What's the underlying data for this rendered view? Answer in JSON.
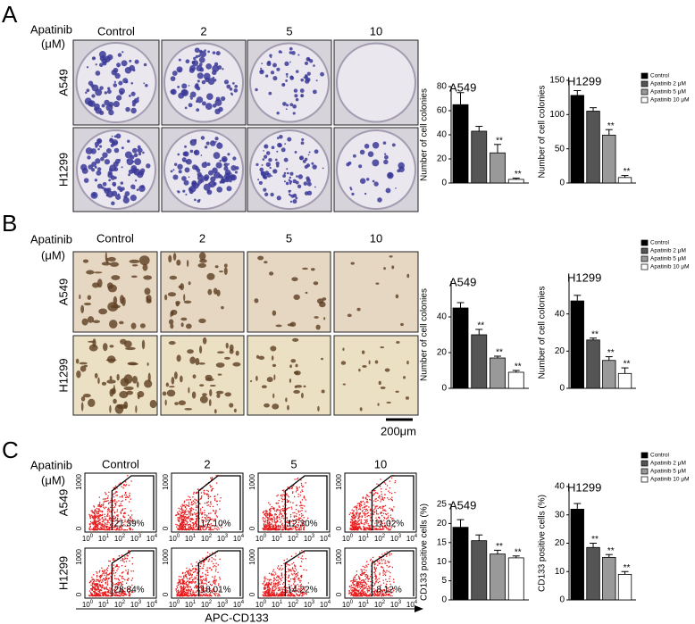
{
  "panels": [
    {
      "letter": "A",
      "treatment": "Apatinib",
      "unit": "(μM)",
      "columns": [
        "Control",
        "2",
        "5",
        "10"
      ],
      "rows": [
        "A549",
        "H1299"
      ]
    },
    {
      "letter": "B",
      "treatment": "Apatinib",
      "unit": "(μM)",
      "columns": [
        "Control",
        "2",
        "5",
        "10"
      ],
      "rows": [
        "A549",
        "H1299"
      ],
      "scale_bar": "200μm"
    },
    {
      "letter": "C",
      "treatment": "Apatinib",
      "unit": "(μM)",
      "columns": [
        "Control",
        "2",
        "5",
        "10"
      ],
      "rows": [
        "A549",
        "H1299"
      ],
      "gates": [
        [
          "21.39%",
          "17.10%",
          "12.30%",
          "11.02%"
        ],
        [
          "28.84%",
          "18.01%",
          "14.22%",
          "8.12%"
        ]
      ],
      "flow_axis": {
        "x_label": "APC-CD133",
        "x_ticks": [
          {
            "base": "10",
            "exp": "0"
          },
          {
            "base": "10",
            "exp": "1"
          },
          {
            "base": "10",
            "exp": "2"
          },
          {
            "base": "10",
            "exp": "3"
          },
          {
            "base": "10",
            "exp": "4"
          }
        ],
        "y_ticks": [
          "0",
          "1000"
        ]
      }
    }
  ],
  "chart_data": [
    {
      "type": "bar",
      "title": "A549",
      "y_label": "Number of cell colonies",
      "ylim": [
        0,
        80
      ],
      "yticks": [
        0,
        20,
        40,
        60,
        80
      ],
      "series": [
        {
          "color": "#000000",
          "values": [
            65
          ],
          "errors": [
            10
          ]
        },
        {
          "color": "#555555",
          "values": [
            43
          ],
          "errors": [
            4
          ]
        },
        {
          "color": "#999999",
          "values": [
            25
          ],
          "errors": [
            7
          ],
          "annotation": "**"
        },
        {
          "color": "#ffffff",
          "values": [
            3
          ],
          "errors": [
            1
          ],
          "annotation": "**"
        }
      ]
    },
    {
      "type": "bar",
      "title": "H1299",
      "y_label": "Number of cell colonies",
      "ylim": [
        0,
        150
      ],
      "yticks": [
        0,
        50,
        100,
        150
      ],
      "legend": "upper right",
      "series": [
        {
          "name": "Control",
          "color": "#000000",
          "values": [
            128
          ],
          "errors": [
            7
          ]
        },
        {
          "name": "Apatinib 2 μM",
          "color": "#555555",
          "values": [
            105
          ],
          "errors": [
            5
          ]
        },
        {
          "name": "Apatinib 5 μM",
          "color": "#999999",
          "values": [
            70
          ],
          "errors": [
            8
          ],
          "annotation": "**"
        },
        {
          "name": "Apatinib 10 μM",
          "color": "#ffffff",
          "values": [
            8
          ],
          "errors": [
            3
          ],
          "annotation": "**"
        }
      ]
    },
    {
      "type": "bar",
      "title": "A549",
      "y_label": "Number of cell colonies",
      "ylim": [
        0,
        60
      ],
      "yticks": [
        0,
        20,
        40
      ],
      "series": [
        {
          "color": "#000000",
          "values": [
            45
          ],
          "errors": [
            3
          ]
        },
        {
          "color": "#555555",
          "values": [
            30
          ],
          "errors": [
            3
          ],
          "annotation": "**"
        },
        {
          "color": "#999999",
          "values": [
            17
          ],
          "errors": [
            1
          ],
          "annotation": "**"
        },
        {
          "color": "#ffffff",
          "values": [
            9
          ],
          "errors": [
            1
          ],
          "annotation": "**"
        }
      ]
    },
    {
      "type": "bar",
      "title": "H1299",
      "y_label": "Number of cell colonies",
      "ylim": [
        0,
        60
      ],
      "yticks": [
        0,
        20,
        40
      ],
      "legend": "upper right",
      "series": [
        {
          "name": "Control",
          "color": "#000000",
          "values": [
            47
          ],
          "errors": [
            3
          ]
        },
        {
          "name": "Apatinib 2 μM",
          "color": "#555555",
          "values": [
            26
          ],
          "errors": [
            1
          ],
          "annotation": "**"
        },
        {
          "name": "Apatinib 5 μM",
          "color": "#999999",
          "values": [
            15
          ],
          "errors": [
            2
          ],
          "annotation": "**"
        },
        {
          "name": "Apatinib 10 μM",
          "color": "#ffffff",
          "values": [
            8
          ],
          "errors": [
            3
          ],
          "annotation": "**"
        }
      ]
    },
    {
      "type": "bar",
      "title": "A549",
      "y_label": "CD133  positive cells (%)",
      "ylim": [
        0,
        25
      ],
      "yticks": [
        0,
        5,
        10,
        15,
        20,
        25
      ],
      "series": [
        {
          "color": "#000000",
          "values": [
            19
          ],
          "errors": [
            2
          ]
        },
        {
          "color": "#555555",
          "values": [
            15.5
          ],
          "errors": [
            1.5
          ]
        },
        {
          "color": "#999999",
          "values": [
            12
          ],
          "errors": [
            1
          ],
          "annotation": "**"
        },
        {
          "color": "#ffffff",
          "values": [
            11
          ],
          "errors": [
            0.5
          ],
          "annotation": "**"
        }
      ]
    },
    {
      "type": "bar",
      "title": "H1299",
      "y_label": "CD133  positive cells (%)",
      "ylim": [
        0,
        40
      ],
      "yticks": [
        0,
        10,
        20,
        30,
        40
      ],
      "legend": "upper right",
      "series": [
        {
          "name": "Control",
          "color": "#000000",
          "values": [
            32
          ],
          "errors": [
            2
          ]
        },
        {
          "name": "Apatinib 2 μM",
          "color": "#555555",
          "values": [
            18.5
          ],
          "errors": [
            1.5
          ],
          "annotation": "**"
        },
        {
          "name": "Apatinib 5 μM",
          "color": "#999999",
          "values": [
            15
          ],
          "errors": [
            1
          ],
          "annotation": "**"
        },
        {
          "name": "Apatinib 10 μM",
          "color": "#ffffff",
          "values": [
            9
          ],
          "errors": [
            1
          ],
          "annotation": "**"
        }
      ]
    }
  ]
}
